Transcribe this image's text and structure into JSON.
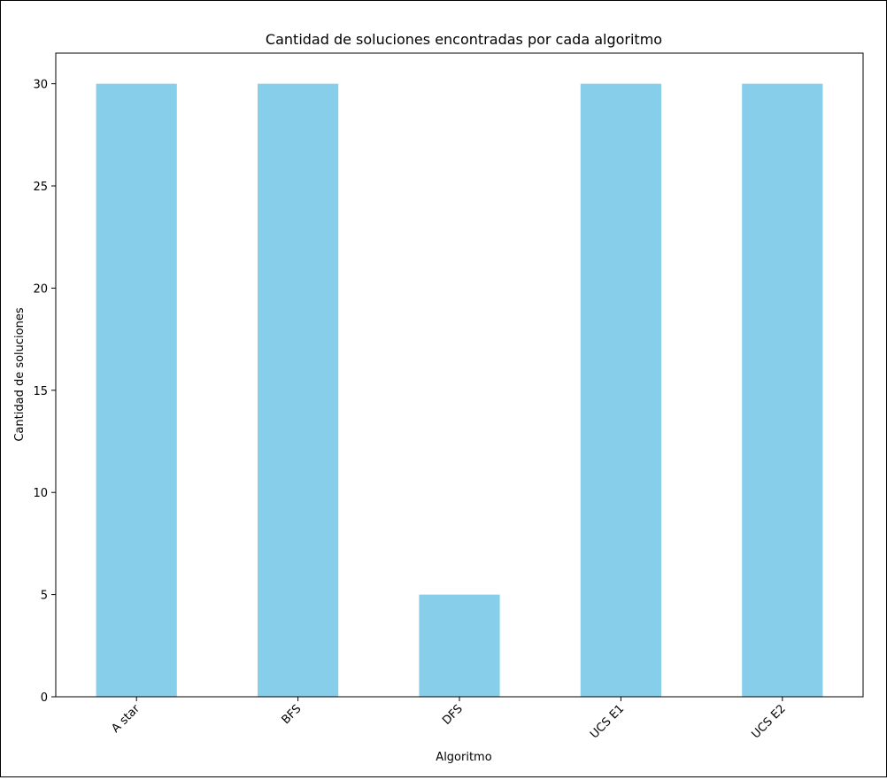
{
  "chart_data": {
    "type": "bar",
    "title": "Cantidad de soluciones encontradas por cada algoritmo",
    "xlabel": "Algoritmo",
    "ylabel": "Cantidad de soluciones",
    "categories": [
      "A star",
      "BFS",
      "DFS",
      "UCS E1",
      "UCS E2"
    ],
    "values": [
      30,
      30,
      5,
      30,
      30
    ],
    "ylim": [
      0,
      31.5
    ],
    "yticks": [
      0,
      5,
      10,
      15,
      20,
      25,
      30
    ],
    "bar_color": "#87ceeb",
    "grid": false,
    "legend": "none"
  }
}
